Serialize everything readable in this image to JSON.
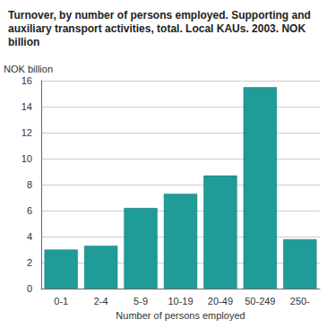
{
  "chart_data": {
    "type": "bar",
    "title": "Turnover, by number of persons employed. Supporting and auxiliary transport activities, total. Local KAUs. 2003. NOK billion",
    "y_label": "NOK billion",
    "x_label": "Number of persons employed",
    "categories": [
      "0-1",
      "2-4",
      "5-9",
      "10-19",
      "20-49",
      "50-249",
      "250-"
    ],
    "values": [
      3.0,
      3.3,
      6.2,
      7.3,
      8.7,
      15.5,
      3.8
    ],
    "color": "#1f9b98",
    "ylim": [
      0,
      16
    ],
    "yticks": [
      0,
      2,
      4,
      6,
      8,
      10,
      12,
      14,
      16
    ],
    "grid": true
  }
}
